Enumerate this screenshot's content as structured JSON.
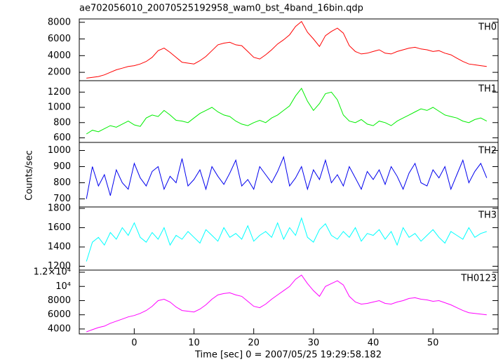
{
  "title": "ae702056010_20070525192958_wam0_bst_4band_16bin.qdp",
  "x_label": "Time [sec] 0 = 2007/05/25 19:29:58.182",
  "y_label": "Counts/sec",
  "chart_data": [
    {
      "type": "line",
      "name": "TH0",
      "color": "#ff0000",
      "x": [
        -8,
        -7,
        -6,
        -5,
        -4,
        -3,
        -2,
        -1,
        0,
        1,
        2,
        3,
        4,
        5,
        6,
        7,
        8,
        9,
        10,
        11,
        12,
        13,
        14,
        15,
        16,
        17,
        18,
        19,
        20,
        21,
        22,
        23,
        24,
        25,
        26,
        27,
        28,
        29,
        30,
        31,
        32,
        33,
        34,
        35,
        36,
        37,
        38,
        39,
        40,
        41,
        42,
        43,
        44,
        45,
        46,
        47,
        48,
        49,
        50,
        51,
        52,
        53,
        54,
        55,
        56,
        57,
        58,
        59
      ],
      "values": [
        1300,
        1400,
        1500,
        1700,
        2000,
        2300,
        2500,
        2700,
        2800,
        3000,
        3300,
        3800,
        4600,
        4900,
        4400,
        3800,
        3200,
        3100,
        3000,
        3400,
        3900,
        4600,
        5300,
        5500,
        5600,
        5300,
        5200,
        4500,
        3800,
        3600,
        4100,
        4700,
        5400,
        5900,
        6500,
        7500,
        8100,
        6800,
        6000,
        5100,
        6400,
        6900,
        7300,
        6700,
        5200,
        4500,
        4200,
        4300,
        4500,
        4700,
        4300,
        4200,
        4500,
        4700,
        4900,
        5000,
        4800,
        4700,
        4500,
        4600,
        4300,
        4100,
        3700,
        3300,
        3000,
        2900,
        2800,
        2700
      ],
      "xlim": [
        -9.2,
        60.9
      ],
      "ylim": [
        1000,
        8400
      ],
      "yticks": [
        2000,
        4000,
        6000,
        8000
      ]
    },
    {
      "type": "line",
      "name": "TH1",
      "color": "#00ee00",
      "x": [
        -8,
        -7,
        -6,
        -5,
        -4,
        -3,
        -2,
        -1,
        0,
        1,
        2,
        3,
        4,
        5,
        6,
        7,
        8,
        9,
        10,
        11,
        12,
        13,
        14,
        15,
        16,
        17,
        18,
        19,
        20,
        21,
        22,
        23,
        24,
        25,
        26,
        27,
        28,
        29,
        30,
        31,
        32,
        33,
        34,
        35,
        36,
        37,
        38,
        39,
        40,
        41,
        42,
        43,
        44,
        45,
        46,
        47,
        48,
        49,
        50,
        51,
        52,
        53,
        54,
        55,
        56,
        57,
        58,
        59
      ],
      "values": [
        650,
        700,
        680,
        720,
        760,
        740,
        780,
        820,
        770,
        750,
        860,
        900,
        880,
        960,
        900,
        830,
        820,
        800,
        860,
        920,
        960,
        1000,
        940,
        900,
        880,
        820,
        780,
        760,
        800,
        830,
        800,
        860,
        900,
        960,
        1020,
        1150,
        1250,
        1080,
        960,
        1050,
        1180,
        1200,
        1100,
        900,
        820,
        800,
        840,
        780,
        760,
        820,
        800,
        760,
        820,
        860,
        900,
        940,
        980,
        960,
        1000,
        950,
        900,
        880,
        860,
        820,
        800,
        840,
        860,
        820
      ],
      "xlim": [
        -9.2,
        60.9
      ],
      "ylim": [
        540,
        1350
      ],
      "yticks": [
        600,
        800,
        1000,
        1200
      ]
    },
    {
      "type": "line",
      "name": "TH2",
      "color": "#0000ee",
      "x": [
        -8,
        -7,
        -6,
        -5,
        -4,
        -3,
        -2,
        -1,
        0,
        1,
        2,
        3,
        4,
        5,
        6,
        7,
        8,
        9,
        10,
        11,
        12,
        13,
        14,
        15,
        16,
        17,
        18,
        19,
        20,
        21,
        22,
        23,
        24,
        25,
        26,
        27,
        28,
        29,
        30,
        31,
        32,
        33,
        34,
        35,
        36,
        37,
        38,
        39,
        40,
        41,
        42,
        43,
        44,
        45,
        46,
        47,
        48,
        49,
        50,
        51,
        52,
        53,
        54,
        55,
        56,
        57,
        58,
        59
      ],
      "values": [
        700,
        900,
        780,
        850,
        720,
        880,
        800,
        760,
        920,
        830,
        780,
        870,
        900,
        760,
        840,
        800,
        950,
        780,
        820,
        880,
        760,
        900,
        840,
        790,
        860,
        940,
        780,
        820,
        760,
        900,
        850,
        800,
        870,
        960,
        780,
        830,
        900,
        760,
        880,
        820,
        940,
        800,
        850,
        780,
        900,
        830,
        760,
        870,
        820,
        880,
        790,
        900,
        840,
        760,
        860,
        920,
        800,
        780,
        880,
        830,
        900,
        760,
        850,
        940,
        800,
        870,
        920,
        830
      ],
      "xlim": [
        -9.2,
        60.9
      ],
      "ylim": [
        650,
        1050
      ],
      "yticks": [
        700,
        800,
        900,
        1000
      ]
    },
    {
      "type": "line",
      "name": "TH3",
      "color": "#00ffff",
      "x": [
        -8,
        -7,
        -6,
        -5,
        -4,
        -3,
        -2,
        -1,
        0,
        1,
        2,
        3,
        4,
        5,
        6,
        7,
        8,
        9,
        10,
        11,
        12,
        13,
        14,
        15,
        16,
        17,
        18,
        19,
        20,
        21,
        22,
        23,
        24,
        25,
        26,
        27,
        28,
        29,
        30,
        31,
        32,
        33,
        34,
        35,
        36,
        37,
        38,
        39,
        40,
        41,
        42,
        43,
        44,
        45,
        46,
        47,
        48,
        49,
        50,
        51,
        52,
        53,
        54,
        55,
        56,
        57,
        58,
        59
      ],
      "values": [
        1250,
        1450,
        1500,
        1420,
        1550,
        1480,
        1600,
        1520,
        1650,
        1500,
        1450,
        1550,
        1480,
        1600,
        1420,
        1520,
        1480,
        1560,
        1500,
        1440,
        1580,
        1520,
        1460,
        1600,
        1500,
        1540,
        1480,
        1620,
        1460,
        1520,
        1560,
        1500,
        1650,
        1480,
        1600,
        1520,
        1700,
        1500,
        1450,
        1580,
        1640,
        1520,
        1480,
        1560,
        1500,
        1600,
        1460,
        1540,
        1520,
        1580,
        1480,
        1560,
        1420,
        1600,
        1500,
        1540,
        1460,
        1520,
        1580,
        1500,
        1440,
        1560,
        1520,
        1480,
        1600,
        1500,
        1540,
        1560
      ],
      "xlim": [
        -9.2,
        60.9
      ],
      "ylim": [
        1160,
        1815
      ],
      "yticks": [
        1200,
        1400,
        1600,
        1800
      ]
    },
    {
      "type": "line",
      "name": "TH0123",
      "color": "#ff00ff",
      "x": [
        -8,
        -7,
        -6,
        -5,
        -4,
        -3,
        -2,
        -1,
        0,
        1,
        2,
        3,
        4,
        5,
        6,
        7,
        8,
        9,
        10,
        11,
        12,
        13,
        14,
        15,
        16,
        17,
        18,
        19,
        20,
        21,
        22,
        23,
        24,
        25,
        26,
        27,
        28,
        29,
        30,
        31,
        32,
        33,
        34,
        35,
        36,
        37,
        38,
        39,
        40,
        41,
        42,
        43,
        44,
        45,
        46,
        47,
        48,
        49,
        50,
        51,
        52,
        53,
        54,
        55,
        56,
        57,
        58,
        59
      ],
      "values": [
        3600,
        3900,
        4200,
        4400,
        4800,
        5100,
        5400,
        5700,
        5900,
        6200,
        6600,
        7200,
        8000,
        8200,
        7800,
        7100,
        6600,
        6500,
        6400,
        6800,
        7400,
        8200,
        8800,
        9000,
        9100,
        8800,
        8600,
        7900,
        7200,
        7000,
        7500,
        8200,
        8800,
        9400,
        10000,
        11000,
        11600,
        10400,
        9400,
        8600,
        10000,
        10400,
        10800,
        10200,
        8600,
        7800,
        7500,
        7600,
        7800,
        8000,
        7600,
        7500,
        7800,
        8000,
        8300,
        8400,
        8200,
        8100,
        7900,
        8000,
        7700,
        7400,
        7000,
        6600,
        6300,
        6200,
        6100,
        6000
      ],
      "xlim": [
        -9.2,
        60.9
      ],
      "ylim": [
        3300,
        12300
      ],
      "yticks": [
        4000,
        6000,
        8000,
        {
          "value": 10000,
          "label": "10⁴"
        },
        {
          "value": 12000,
          "label": "1.2×10⁴"
        }
      ],
      "xticks": [
        0,
        10,
        20,
        30,
        40,
        50
      ]
    }
  ]
}
